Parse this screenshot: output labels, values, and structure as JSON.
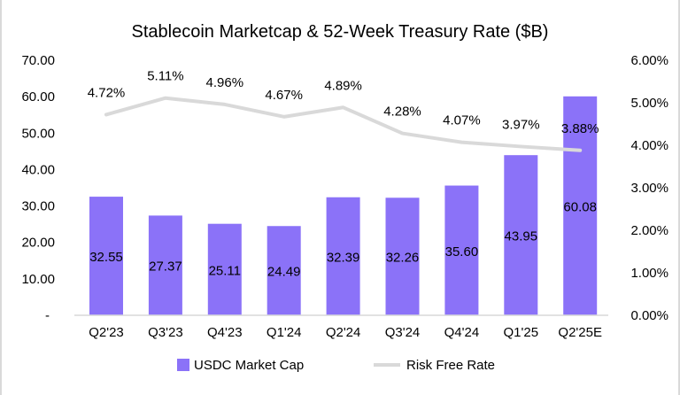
{
  "chart_data": {
    "type": "bar+line",
    "title": "Stablecoin Marketcap & 52-Week Treasury Rate ($B)",
    "categories": [
      "Q2'23",
      "Q3'23",
      "Q4'23",
      "Q1'24",
      "Q2'24",
      "Q3'24",
      "Q4'24",
      "Q1'25",
      "Q2'25E"
    ],
    "series": [
      {
        "name": "USDC Market Cap",
        "type": "bar",
        "axis": "left",
        "color": "#8B72F8",
        "values": [
          32.55,
          27.37,
          25.11,
          24.49,
          32.39,
          32.26,
          35.6,
          43.95,
          60.08
        ],
        "labels": [
          "32.55",
          "27.37",
          "25.11",
          "24.49",
          "32.39",
          "32.26",
          "35.60",
          "43.95",
          "60.08"
        ]
      },
      {
        "name": "Risk Free Rate",
        "type": "line",
        "axis": "right",
        "color": "#D9D9D9",
        "values": [
          4.72,
          5.11,
          4.96,
          4.67,
          4.89,
          4.28,
          4.07,
          3.97,
          3.88
        ],
        "labels": [
          "4.72%",
          "5.11%",
          "4.96%",
          "4.67%",
          "4.89%",
          "4.28%",
          "4.07%",
          "3.97%",
          "3.88%"
        ]
      }
    ],
    "y_left": {
      "ylim": [
        0,
        70
      ],
      "ticks": [
        "-",
        "10.00",
        "20.00",
        "30.00",
        "40.00",
        "50.00",
        "60.00",
        "70.00"
      ]
    },
    "y_right": {
      "ylim": [
        0,
        6
      ],
      "ticks": [
        "0.00%",
        "1.00%",
        "2.00%",
        "3.00%",
        "4.00%",
        "5.00%",
        "6.00%"
      ]
    },
    "grid": false,
    "legend": "bottom"
  }
}
